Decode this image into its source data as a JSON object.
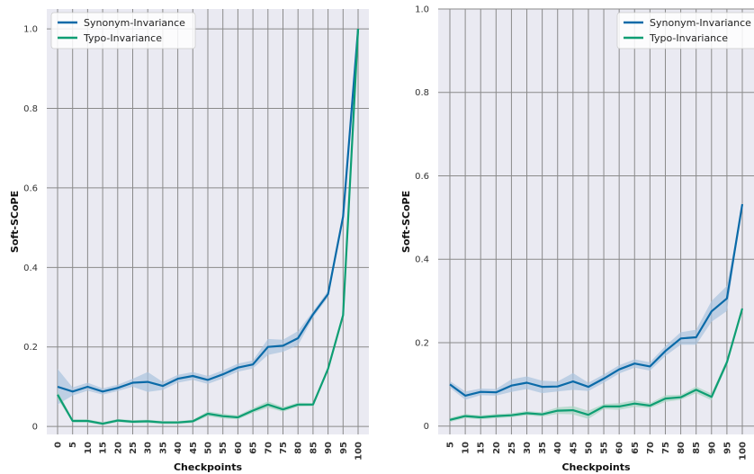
{
  "colors": {
    "background": "#eaeaf2",
    "grid": "#8a8a8a",
    "synonym": "#0a6aa8",
    "synonym_band": "#a9c3de",
    "typo": "#0e9e73",
    "typo_band": "#a6d4c2"
  },
  "chart_data": [
    {
      "type": "line",
      "xlabel": "Checkpoints",
      "ylabel": "Soft-SCoPE",
      "ylim": [
        -0.02,
        1.05
      ],
      "yticks": [
        0,
        0.2,
        0.4,
        0.6,
        0.8,
        1.0
      ],
      "ytick_labels": [
        "0",
        "0.2",
        "0.4",
        "0.6",
        "0.8",
        "1.0"
      ],
      "grid": true,
      "legend": "top-left",
      "x": [
        "0",
        "5",
        "10",
        "15",
        "20",
        "25",
        "30",
        "35",
        "40",
        "45",
        "50",
        "55",
        "60",
        "65",
        "70",
        "75",
        "80",
        "85",
        "90",
        "95",
        "100"
      ],
      "series": [
        {
          "name": "Synonym-Invariance",
          "values": [
            0.1,
            0.088,
            0.1,
            0.088,
            0.097,
            0.11,
            0.112,
            0.102,
            0.12,
            0.127,
            0.117,
            0.131,
            0.148,
            0.156,
            0.2,
            0.203,
            0.222,
            0.282,
            0.333,
            0.528,
            1.0
          ],
          "band": [
            0.045,
            0.01,
            0.01,
            0.008,
            0.008,
            0.01,
            0.025,
            0.01,
            0.01,
            0.01,
            0.01,
            0.01,
            0.01,
            0.01,
            0.02,
            0.015,
            0.018,
            0.008,
            0.008,
            0.005,
            0.0
          ]
        },
        {
          "name": "Typo-Invariance",
          "values": [
            0.08,
            0.014,
            0.014,
            0.007,
            0.015,
            0.012,
            0.013,
            0.01,
            0.01,
            0.013,
            0.032,
            0.026,
            0.023,
            0.04,
            0.055,
            0.043,
            0.055,
            0.055,
            0.145,
            0.28,
            1.0
          ],
          "band": [
            0.01,
            0.004,
            0.004,
            0.004,
            0.004,
            0.004,
            0.004,
            0.004,
            0.004,
            0.004,
            0.006,
            0.006,
            0.005,
            0.006,
            0.008,
            0.006,
            0.005,
            0.004,
            0.004,
            0.004,
            0.0
          ]
        }
      ]
    },
    {
      "type": "line",
      "xlabel": "Checkpoints",
      "ylabel": "Soft-SCoPE",
      "ylim": [
        -0.02,
        1.0
      ],
      "yticks": [
        0,
        0.2,
        0.4,
        0.6,
        0.8,
        1.0
      ],
      "ytick_labels": [
        "0",
        "0.2",
        "0.4",
        "0.6",
        "0.8",
        "1.0"
      ],
      "grid": true,
      "legend": "top-right",
      "x": [
        "5",
        "10",
        "15",
        "20",
        "25",
        "30",
        "35",
        "40",
        "45",
        "50",
        "55",
        "60",
        "65",
        "70",
        "75",
        "80",
        "85",
        "90",
        "95",
        "100"
      ],
      "series": [
        {
          "name": "Synonym-Invariance",
          "values": [
            0.1,
            0.073,
            0.082,
            0.081,
            0.097,
            0.104,
            0.094,
            0.095,
            0.107,
            0.094,
            0.114,
            0.136,
            0.15,
            0.143,
            0.18,
            0.21,
            0.213,
            0.275,
            0.306,
            0.532
          ],
          "band": [
            0.008,
            0.01,
            0.008,
            0.008,
            0.015,
            0.015,
            0.015,
            0.012,
            0.02,
            0.01,
            0.01,
            0.01,
            0.01,
            0.01,
            0.012,
            0.015,
            0.018,
            0.025,
            0.03,
            0.0
          ]
        },
        {
          "name": "Typo-Invariance",
          "values": [
            0.015,
            0.024,
            0.021,
            0.024,
            0.026,
            0.031,
            0.028,
            0.037,
            0.038,
            0.027,
            0.047,
            0.047,
            0.054,
            0.049,
            0.066,
            0.069,
            0.087,
            0.07,
            0.153,
            0.282
          ],
          "band": [
            0.005,
            0.005,
            0.005,
            0.005,
            0.005,
            0.005,
            0.005,
            0.008,
            0.01,
            0.01,
            0.006,
            0.008,
            0.008,
            0.006,
            0.008,
            0.006,
            0.008,
            0.008,
            0.008,
            0.0
          ]
        }
      ]
    }
  ]
}
